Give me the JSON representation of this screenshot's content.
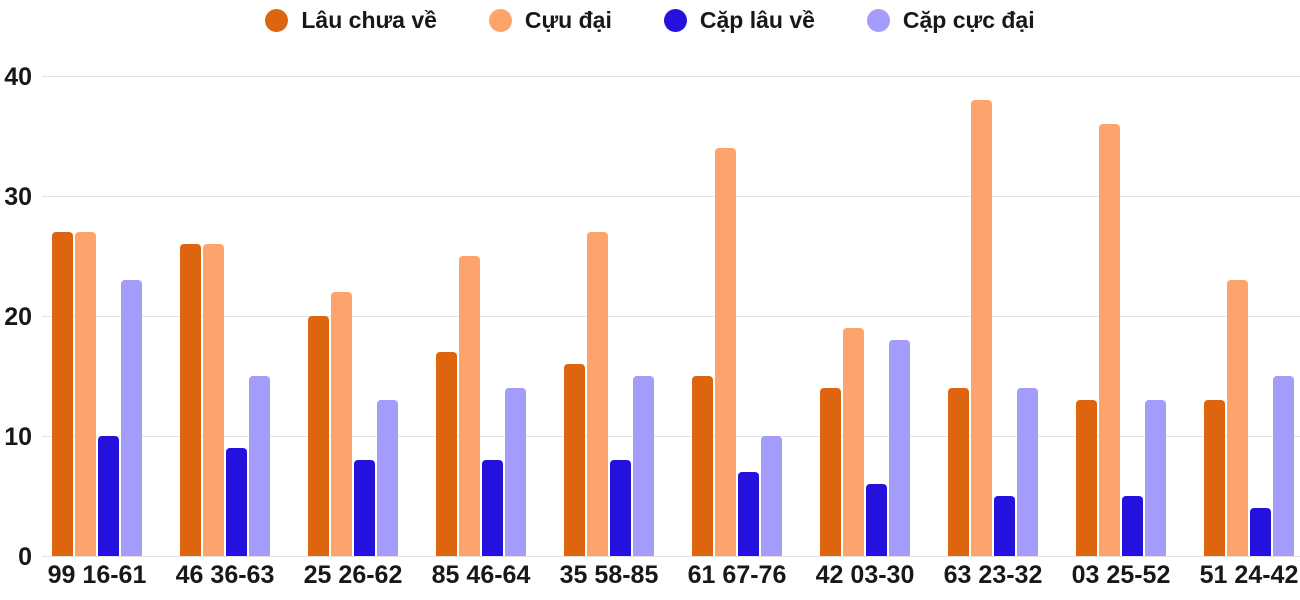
{
  "colors": {
    "text": "#18181b",
    "gridline": "#e4e4e6",
    "background": "#ffffff"
  },
  "chart_data": {
    "type": "bar",
    "title": "",
    "xlabel": "",
    "ylabel": "",
    "categories": [
      "99 16-61",
      "46 36-63",
      "25 26-62",
      "85 46-64",
      "35 58-85",
      "61 67-76",
      "42 03-30",
      "63 23-32",
      "03 25-52",
      "51 24-42"
    ],
    "series": [
      {
        "name": "Lâu chưa về",
        "color": "#de650f",
        "values": [
          27,
          26,
          20,
          17,
          16,
          15,
          14,
          14,
          13,
          13
        ]
      },
      {
        "name": "Cựu đại",
        "color": "#fda46c",
        "values": [
          27,
          26,
          22,
          25,
          27,
          34,
          19,
          38,
          36,
          23
        ]
      },
      {
        "name": "Cặp lâu về",
        "color": "#2411dd",
        "values": [
          10,
          9,
          8,
          8,
          8,
          7,
          6,
          5,
          5,
          4
        ]
      },
      {
        "name": "Cặp cực đại",
        "color": "#a49cfa",
        "values": [
          23,
          15,
          13,
          14,
          15,
          10,
          18,
          14,
          13,
          15
        ]
      }
    ],
    "ylim": [
      0,
      40
    ],
    "y_ticks": [
      0,
      10,
      20,
      30,
      40
    ],
    "grid": true,
    "legend_position": "top"
  }
}
